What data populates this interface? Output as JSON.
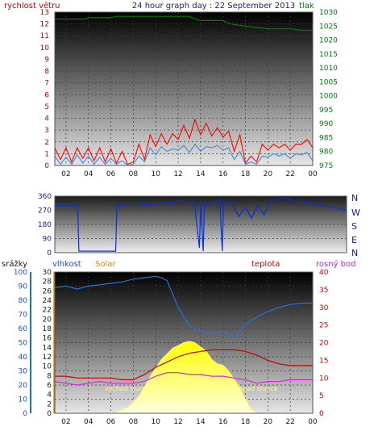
{
  "header": {
    "left_label": "rychlost větru",
    "title": "24 hour graph day : 22 September 2013",
    "right_label": "tlak"
  },
  "x_ticks": [
    "02",
    "04",
    "06",
    "08",
    "10",
    "12",
    "14",
    "16",
    "18",
    "20",
    "22",
    "00"
  ],
  "colors": {
    "wind": "#ff0000",
    "gust": "#3a8fd6",
    "pressure": "#007a00",
    "direction": "#0030e0",
    "humidity": "#2a70e0",
    "solar": "#ffff00",
    "temperature": "#c80000",
    "dewpoint": "#e020e0",
    "rain": "#0000ff"
  },
  "chart_data": [
    {
      "type": "line",
      "name": "wind-pressure",
      "left_axis": {
        "ticks": [
          "13",
          "12",
          "11",
          "10",
          "9",
          "8",
          "7",
          "6",
          "5",
          "4",
          "3",
          "2",
          "1",
          "0"
        ],
        "range": [
          0,
          13
        ]
      },
      "right_axis": {
        "ticks": [
          "1030",
          "1025",
          "1020",
          "1015",
          "1010",
          "1005",
          "1000",
          "995",
          "990",
          "985",
          "980",
          "975"
        ],
        "range": [
          975,
          1030
        ]
      },
      "x_range_hours": [
        1,
        24
      ],
      "series": [
        {
          "name": "",
          "key": "wind",
          "axis": "left",
          "x": [
            1,
            1.5,
            2,
            2.5,
            3,
            3.5,
            4,
            4.5,
            5,
            5.5,
            6,
            6.5,
            7,
            7.5,
            8,
            8.5,
            9,
            9.5,
            10,
            10.5,
            11,
            11.5,
            12,
            12.5,
            13,
            13.5,
            14,
            14.5,
            15,
            15.5,
            16,
            16.5,
            17,
            17.5,
            18,
            18.5,
            19,
            19.5,
            20,
            20.5,
            21,
            21.5,
            22,
            22.5,
            23,
            23.5,
            24
          ],
          "y": [
            1.5,
            0.5,
            1.5,
            0.3,
            1.5,
            0.6,
            1.5,
            0.4,
            1.5,
            0.3,
            1.4,
            0.2,
            1.2,
            0.1,
            0.3,
            1.8,
            0.5,
            2.6,
            1.6,
            2.7,
            1.8,
            2.7,
            2.2,
            3.4,
            2.3,
            3.9,
            2.6,
            3.6,
            2.5,
            3.2,
            2.4,
            2.9,
            1.2,
            2.6,
            0.2,
            0.8,
            0.3,
            1.8,
            1.3,
            1.8,
            1.5,
            1.8,
            1.3,
            1.8,
            1.8,
            2.2,
            1.5
          ]
        },
        {
          "name": "",
          "key": "gust",
          "axis": "left",
          "x": [
            1,
            1.5,
            2,
            2.5,
            3,
            3.5,
            4,
            4.5,
            5,
            5.5,
            6,
            6.5,
            7,
            7.5,
            8,
            8.5,
            9,
            9.5,
            10,
            10.5,
            11,
            11.5,
            12,
            12.5,
            13,
            13.5,
            14,
            14.5,
            15,
            15.5,
            16,
            16.5,
            17,
            17.5,
            18,
            18.5,
            19,
            19.5,
            20,
            20.5,
            21,
            21.5,
            22,
            22.5,
            23,
            23.5,
            24
          ],
          "y": [
            0.8,
            0.1,
            0.7,
            0.1,
            0.9,
            0.2,
            0.8,
            0.1,
            0.7,
            0.1,
            0.6,
            0.1,
            0.4,
            0.0,
            0.1,
            0.8,
            0.3,
            1.5,
            0.9,
            1.6,
            1.2,
            1.4,
            1.3,
            1.7,
            1.1,
            1.8,
            1.2,
            1.6,
            1.5,
            1.7,
            1.3,
            1.5,
            0.5,
            1.2,
            0.1,
            0.3,
            0.1,
            0.8,
            0.7,
            1.0,
            0.8,
            1.0,
            0.6,
            1.0,
            0.9,
            1.1,
            0.4
          ]
        },
        {
          "name": "",
          "key": "pressure",
          "axis": "right",
          "x": [
            1,
            3,
            3.8,
            4,
            5,
            6,
            6.5,
            8,
            10,
            12,
            13,
            13.5,
            14,
            15,
            16,
            16.5,
            17,
            18,
            19,
            20,
            21,
            22,
            23,
            24
          ],
          "y": [
            1027.5,
            1027.5,
            1027.5,
            1028,
            1028,
            1028,
            1028.5,
            1028.5,
            1028.5,
            1028.5,
            1028.5,
            1027.5,
            1027,
            1027,
            1027,
            1026,
            1025.5,
            1025,
            1024.5,
            1024,
            1024,
            1024,
            1023.5,
            1023.5
          ]
        }
      ]
    },
    {
      "type": "line",
      "name": "wind-direction",
      "left_axis": {
        "ticks": [
          "360",
          "270",
          "180",
          "90",
          "0"
        ],
        "range": [
          0,
          360
        ]
      },
      "right_axis": {
        "ticks": [
          "N",
          "W",
          "S",
          "E",
          "N"
        ]
      },
      "x_range_hours": [
        1,
        24
      ],
      "series": [
        {
          "name": "",
          "key": "direction",
          "x": [
            1,
            2.8,
            2.9,
            5.8,
            5.9,
            8,
            10,
            11,
            12,
            12.4,
            12.5,
            12.7,
            12.8,
            13,
            14,
            14.2,
            14.3,
            15,
            15.5,
            16,
            16.5,
            17,
            17.5,
            18,
            18.5,
            19,
            20,
            21,
            22,
            23,
            24
          ],
          "y": [
            300,
            300,
            10,
            10,
            300,
            310,
            320,
            330,
            320,
            30,
            320,
            10,
            320,
            300,
            340,
            10,
            330,
            310,
            230,
            290,
            220,
            300,
            240,
            330,
            340,
            350,
            330,
            320,
            300,
            290,
            270
          ]
        }
      ]
    },
    {
      "type": "line",
      "name": "humidity-temperature",
      "top_labels": {
        "rain": "srážky",
        "humidity": "vlhkost",
        "solar": "Solar",
        "temperature": "teplota",
        "dewpoint": "rosný bod"
      },
      "rain_axis": {
        "ticks": [
          "100",
          "90",
          "80",
          "70",
          "60",
          "50",
          "40",
          "30",
          "20",
          "10",
          "0"
        ],
        "range": [
          0,
          100
        ]
      },
      "humidity_axis": {
        "ticks": [
          "30",
          "28",
          "26",
          "24",
          "22",
          "20",
          "18",
          "16",
          "14",
          "12",
          "10",
          "8",
          "6",
          "4",
          "2",
          "0"
        ],
        "range": [
          0,
          30
        ]
      },
      "temperature_axis": {
        "ticks": [
          "40",
          "35",
          "30",
          "25",
          "20",
          "15",
          "10",
          "5",
          "0"
        ],
        "range": [
          0,
          40
        ]
      },
      "annotations": {
        "sunrise": "východ slunce",
        "sunset": "západ slunce"
      },
      "x_range_hours": [
        1,
        24
      ],
      "series": [
        {
          "name": "",
          "key": "humidity",
          "axis": "rain",
          "x": [
            1,
            2,
            3,
            4,
            5,
            6,
            7,
            8,
            9,
            10,
            10.5,
            11,
            12,
            13,
            14,
            15,
            16,
            16.5,
            17,
            18,
            19,
            20,
            21,
            22,
            23,
            24
          ],
          "y": [
            89,
            90,
            88,
            90,
            91,
            92,
            93,
            95,
            96,
            97,
            96,
            94,
            75,
            62,
            58,
            57,
            58,
            56,
            54,
            63,
            68,
            72,
            75,
            77,
            78,
            78
          ]
        },
        {
          "name": "",
          "key": "temperature",
          "axis": "temp",
          "x": [
            1,
            2,
            3,
            4,
            5,
            6,
            7,
            8,
            9,
            10,
            11,
            12,
            13,
            14,
            15,
            16,
            17,
            18,
            19,
            20,
            21,
            22,
            23,
            24
          ],
          "y": [
            10.5,
            10.5,
            10,
            10,
            10,
            10,
            9.5,
            9.5,
            11,
            13,
            14.5,
            16,
            17,
            17.5,
            18,
            18,
            18,
            17.5,
            16.5,
            15,
            14,
            13.5,
            13.5,
            13.5
          ]
        },
        {
          "name": "",
          "key": "dewpoint",
          "axis": "temp",
          "x": [
            1,
            2,
            3,
            4,
            5,
            6,
            7,
            8,
            9,
            10,
            11,
            12,
            13,
            14,
            15,
            16,
            17,
            18,
            19,
            20,
            21,
            22,
            23,
            24
          ],
          "y": [
            9,
            8.5,
            8,
            8.5,
            9,
            8.5,
            8.5,
            8.5,
            9,
            10.5,
            11.5,
            11.5,
            11,
            11,
            10.5,
            10.5,
            10,
            9.5,
            8.5,
            9,
            9,
            9.5,
            9.5,
            9.5
          ]
        },
        {
          "name": "",
          "key": "solar",
          "axis": "rain",
          "x": [
            6.5,
            7.5,
            8.5,
            9.5,
            10.5,
            11.5,
            12.5,
            13,
            13.5,
            14,
            14.5,
            15,
            15.5,
            16,
            16.5,
            17,
            17.5,
            18,
            18.5,
            19
          ],
          "y": [
            1,
            4,
            12,
            26,
            38,
            46,
            50,
            51,
            50,
            47,
            44,
            38,
            35,
            34,
            30,
            24,
            18,
            10,
            3,
            0
          ]
        }
      ]
    }
  ]
}
